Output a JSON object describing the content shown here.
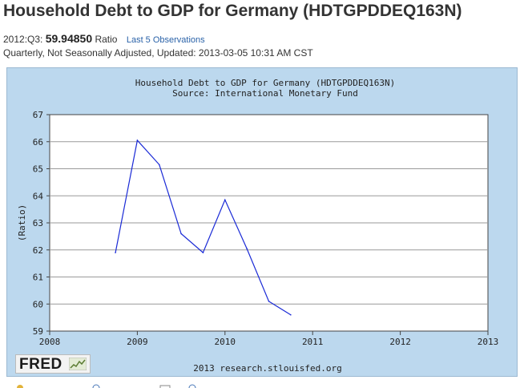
{
  "page": {
    "title": "Household Debt to GDP for Germany (HDTGPDDEQ163N)",
    "obs_date": "2012:Q3:",
    "obs_value": "59.94850",
    "obs_unit": "Ratio",
    "last5_link": "Last 5 Observations",
    "meta": "Quarterly, Not Seasonally Adjusted, Updated: 2013-03-05 10:31 AM CST"
  },
  "branding": {
    "logo_text": "FRED",
    "credit": "2013 research.stlouisfed.org"
  },
  "colors": {
    "panel_bg": "#bcd8ee",
    "series_line": "#1a2ad6",
    "link": "#2a62a8"
  },
  "chart_data": {
    "type": "line",
    "title": "Household Debt to GDP for Germany (HDTGPDDEQ163N)",
    "subtitle": "Source: International Monetary Fund",
    "xlabel": "",
    "ylabel": "(Ratio)",
    "xlim": [
      2008,
      2013
    ],
    "ylim": [
      59,
      67
    ],
    "x_ticks": [
      "2008",
      "2009",
      "2010",
      "2011",
      "2012",
      "2013"
    ],
    "y_ticks": [
      "59",
      "60",
      "61",
      "62",
      "63",
      "64",
      "65",
      "66",
      "67"
    ],
    "grid": "horizontal",
    "series": [
      {
        "x": [
          2008.75,
          2009.0,
          2009.25,
          2009.5,
          2009.75,
          2010.0,
          2010.25,
          2010.5,
          2010.75
        ],
        "y": [
          61.9,
          66.05,
          65.15,
          62.6,
          61.9,
          63.85,
          62.05,
          60.1,
          59.6
        ]
      }
    ]
  }
}
